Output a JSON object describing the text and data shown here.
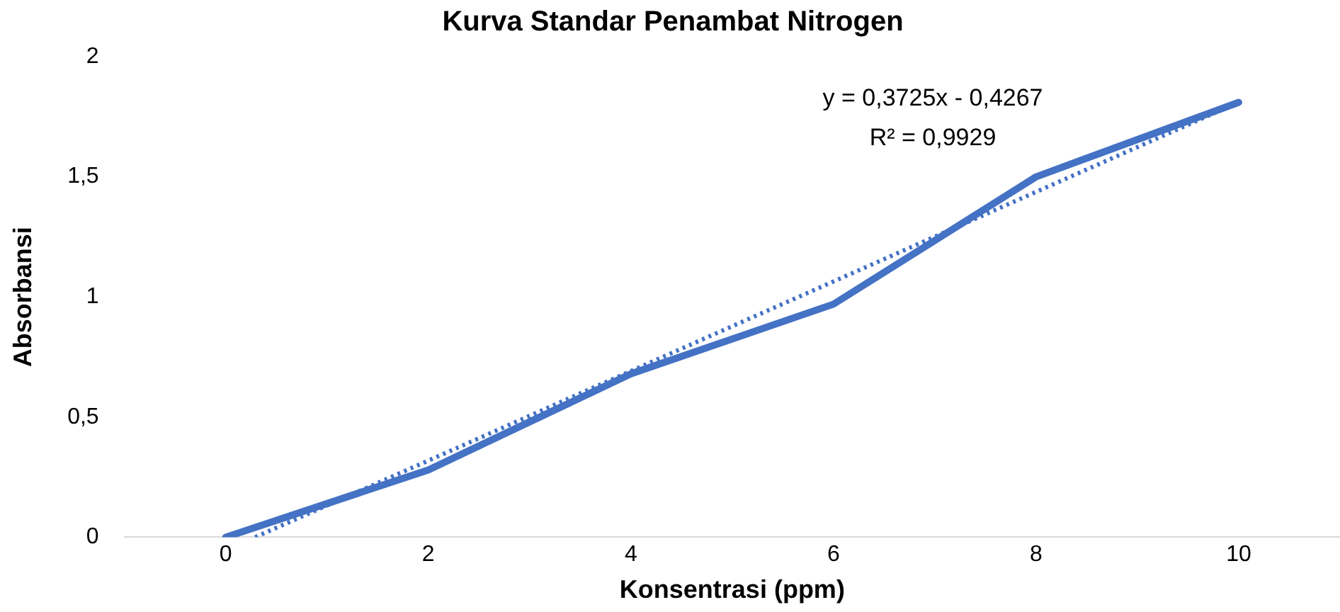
{
  "chart_data": {
    "type": "line",
    "title": "Kurva Standar Penambat Nitrogen",
    "xlabel": "Konsentrasi (ppm)",
    "ylabel": "Absorbansi",
    "x": [
      0,
      2,
      4,
      6,
      8,
      10
    ],
    "series": [
      {
        "color": "#4472c4",
        "values": [
          0,
          0.28,
          0.68,
          0.97,
          1.5,
          1.81
        ]
      },
      {
        "type": "line",
        "color": "#4472c4",
        "line_style": "dotted",
        "x": [
          0.29,
          10
        ],
        "values": [
          0,
          1.81
        ]
      }
    ],
    "xlim": [
      -1,
      11
    ],
    "xticks": [
      0,
      2,
      4,
      6,
      8,
      10
    ],
    "ylim": [
      0,
      2
    ],
    "yticks": [
      0,
      {
        "value": 0.5,
        "label": "0,5"
      },
      1,
      {
        "value": 1.5,
        "label": "1,5"
      },
      2
    ],
    "annotations": [
      "y = 0,3725x - 0,4267",
      "R² = 0,9929"
    ],
    "grid": false,
    "legend": false,
    "marker": "none",
    "line_style": "solid"
  }
}
